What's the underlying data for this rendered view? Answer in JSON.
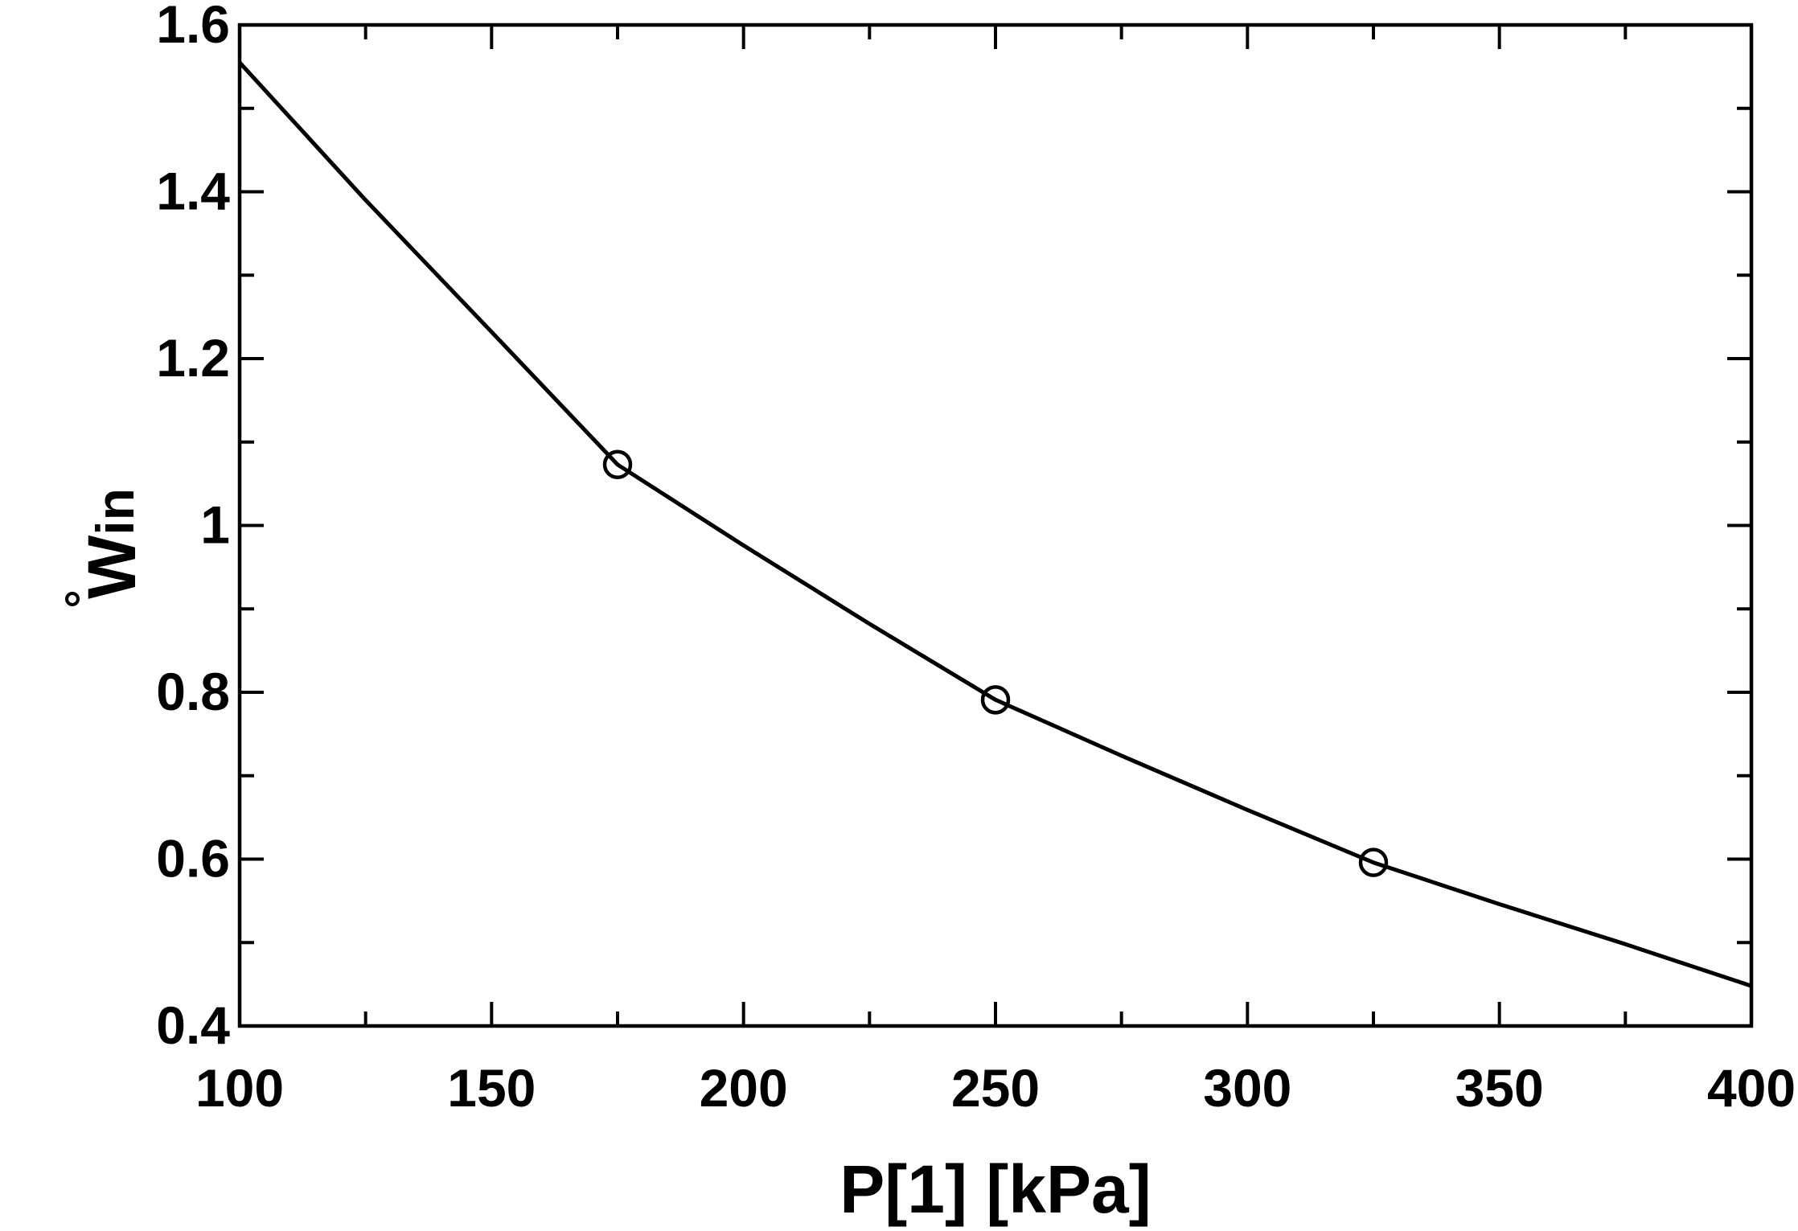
{
  "chart_data": {
    "type": "line",
    "xlabel": "P[1]  [kPa]",
    "ylabel": {
      "main": "W",
      "subscript": "in",
      "accent": "dot"
    },
    "xlim": [
      100,
      400
    ],
    "ylim": [
      0.4,
      1.6
    ],
    "x_ticks": [
      100,
      150,
      200,
      250,
      300,
      350,
      400
    ],
    "x_tick_labels": [
      "100",
      "150",
      "200",
      "250",
      "300",
      "350",
      "400"
    ],
    "x_minor_step": 25,
    "y_ticks": [
      0.4,
      0.6,
      0.8,
      1.0,
      1.2,
      1.4,
      1.6
    ],
    "y_tick_labels": [
      "0.4",
      "0.6",
      "0.8",
      "1",
      "1.2",
      "1.4",
      "1.6"
    ],
    "y_minor_step": 0.1,
    "grid": false,
    "series": [
      {
        "line_color": "#000000",
        "marker": "circle",
        "x": [
          100,
          125,
          150,
          175,
          200,
          225,
          250,
          275,
          300,
          325,
          350,
          375,
          400
        ],
        "y": [
          1.555,
          1.39,
          1.232,
          1.073,
          0.976,
          0.882,
          0.791,
          0.724,
          0.659,
          0.596,
          0.546,
          0.498,
          0.448
        ],
        "marker_x": [
          175,
          250,
          325
        ],
        "marker_y": [
          1.073,
          0.791,
          0.596
        ]
      }
    ]
  }
}
